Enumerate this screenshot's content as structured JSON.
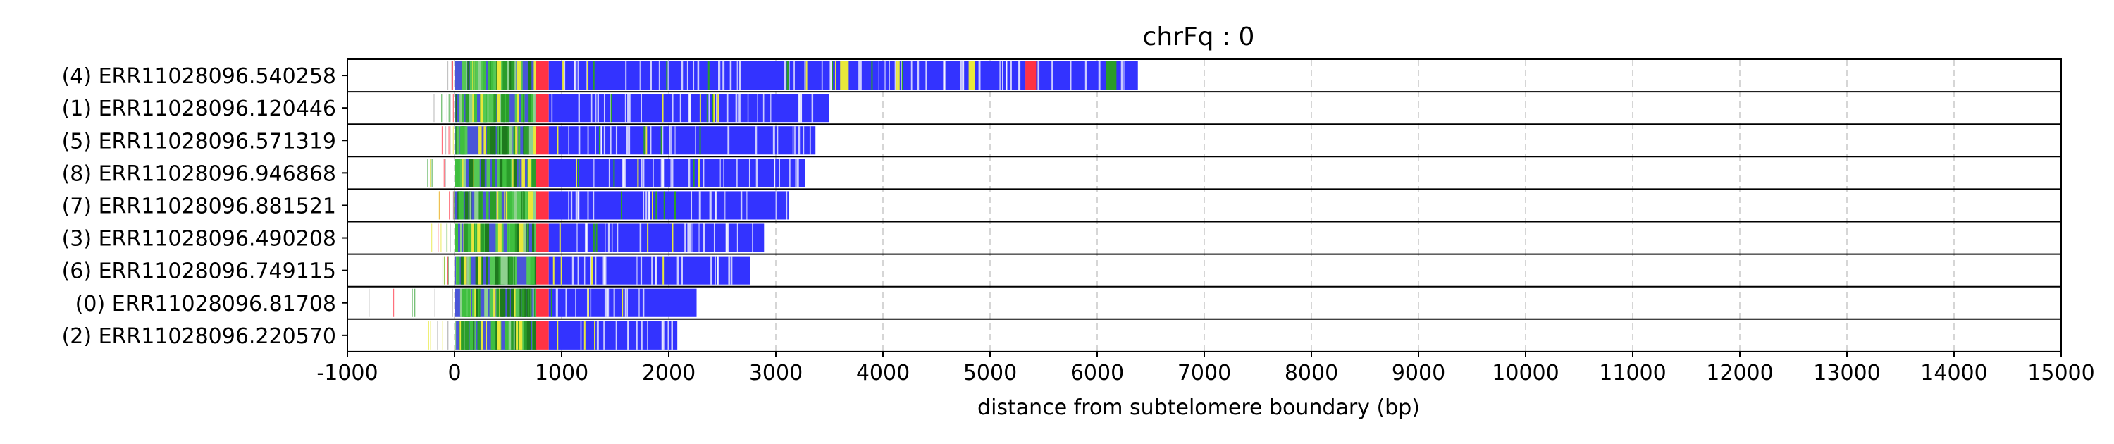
{
  "chart_data": {
    "type": "bar",
    "title": "chrFq : 0",
    "xlabel": "distance from subtelomere boundary (bp)",
    "ylabel": "",
    "xlim": [
      -1000,
      15000
    ],
    "xticks": [
      -1000,
      0,
      1000,
      2000,
      3000,
      4000,
      5000,
      6000,
      7000,
      8000,
      9000,
      10000,
      11000,
      12000,
      13000,
      14000,
      15000
    ],
    "grid": "x-dashed",
    "colors": {
      "repeat": "#3333ff",
      "subtelomere": "#2a9d2a",
      "boundary": "#ff3344",
      "other": "#e8e83a"
    },
    "reads": [
      {
        "label": "(4) ERR11028096.540258",
        "start": -80,
        "end": 6380
      },
      {
        "label": "(1) ERR11028096.120446",
        "start": -200,
        "end": 3500
      },
      {
        "label": "(5) ERR11028096.571319",
        "start": -150,
        "end": 3370
      },
      {
        "label": "(8) ERR11028096.946868",
        "start": -260,
        "end": 3270
      },
      {
        "label": "(7) ERR11028096.881521",
        "start": -160,
        "end": 3120
      },
      {
        "label": "(3) ERR11028096.490208",
        "start": -250,
        "end": 2890
      },
      {
        "label": "(6) ERR11028096.749115",
        "start": -120,
        "end": 2760
      },
      {
        "label": "(0) ERR11028096.81708",
        "start": -820,
        "end": 2260
      },
      {
        "label": "(2) ERR11028096.220570",
        "start": -270,
        "end": 2080
      }
    ]
  }
}
